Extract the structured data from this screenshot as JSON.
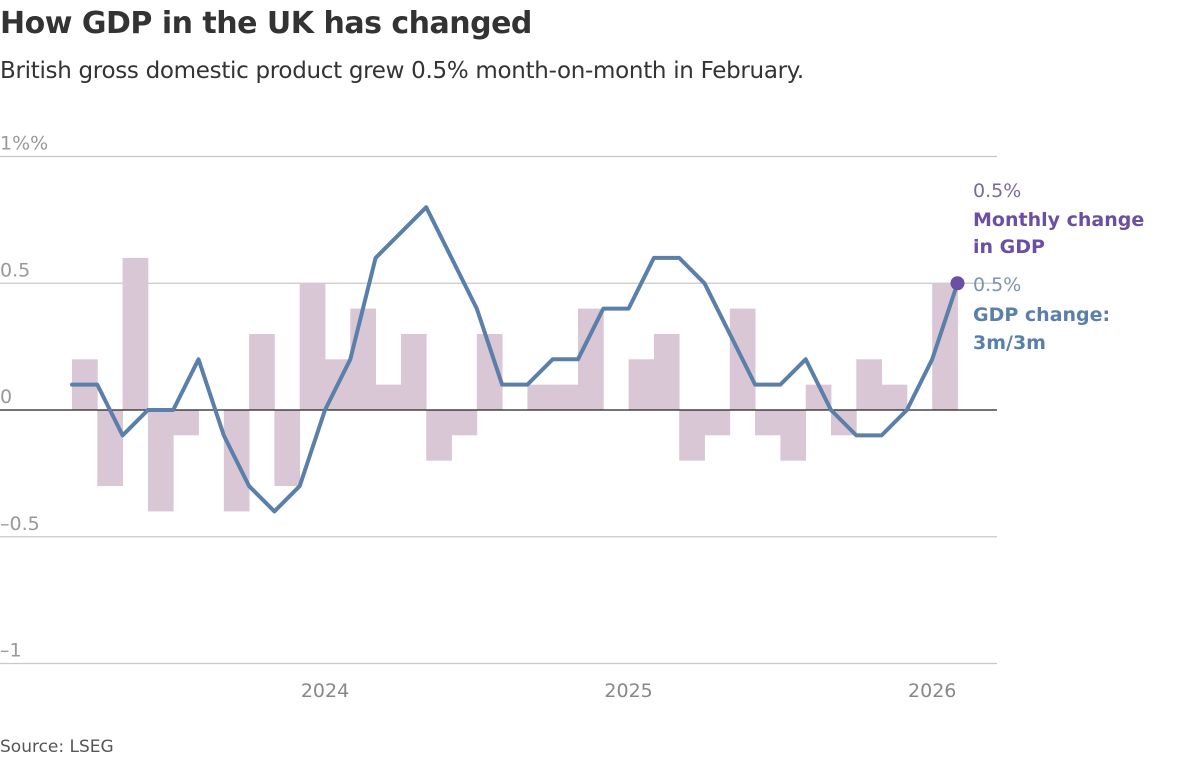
{
  "title": "How GDP in the UK has changed",
  "subtitle": "British gross domestic product grew 0.5% month-on-month in February.",
  "source": "Source: LSEG",
  "colors": {
    "bars": "#d9c7d6",
    "line": "#5a7fa9",
    "dot": "#6a4fa3",
    "monthly_label": "#6a4fa3",
    "line_label": "#5a7fa9"
  },
  "chart_data": {
    "type": "bar+line",
    "ylim": [
      -1,
      1
    ],
    "yticks": [
      1,
      0.5,
      0,
      -0.5,
      -1
    ],
    "ytick_labels": [
      "1%%",
      "0.5",
      "0",
      "–0.5",
      "–1"
    ],
    "xtick_labels": [
      {
        "label": "2024",
        "date": "2024-01"
      },
      {
        "label": "2025",
        "date": "2025-01"
      },
      {
        "label": "2026",
        "date": "2026-01"
      }
    ],
    "grid": true,
    "series": [
      {
        "name": "Monthly change in GDP",
        "kind": "bar",
        "x": [
          "2023-04",
          "2023-05",
          "2023-06",
          "2023-07",
          "2023-08",
          "2023-09",
          "2023-10",
          "2023-11",
          "2023-12",
          "2024-01",
          "2024-02",
          "2024-03",
          "2024-04",
          "2024-05",
          "2024-06",
          "2024-07",
          "2024-08",
          "2024-09",
          "2024-10",
          "2024-11",
          "2024-12",
          "2025-01",
          "2025-02",
          "2025-03",
          "2025-04",
          "2025-05",
          "2025-06",
          "2025-07",
          "2025-08",
          "2025-09",
          "2025-10",
          "2025-11",
          "2025-12",
          "2026-01",
          "2026-02"
        ],
        "values": [
          0.2,
          -0.3,
          0.6,
          -0.4,
          -0.1,
          0.0,
          -0.4,
          0.3,
          -0.3,
          0.5,
          0.2,
          0.4,
          0.1,
          0.3,
          -0.2,
          -0.1,
          0.3,
          0.0,
          0.1,
          0.1,
          0.4,
          0.0,
          0.2,
          0.3,
          -0.2,
          -0.1,
          0.4,
          -0.1,
          -0.2,
          0.1,
          -0.1,
          0.2,
          0.1,
          0.0,
          0.5
        ]
      },
      {
        "name": "GDP change: 3m/3m",
        "kind": "line",
        "x": [
          "2023-03",
          "2023-04",
          "2023-05",
          "2023-06",
          "2023-07",
          "2023-08",
          "2023-09",
          "2023-10",
          "2023-11",
          "2023-12",
          "2024-01",
          "2024-02",
          "2024-03",
          "2024-04",
          "2024-05",
          "2024-06",
          "2024-07",
          "2024-08",
          "2024-09",
          "2024-10",
          "2024-11",
          "2024-12",
          "2025-01",
          "2025-02",
          "2025-03",
          "2025-04",
          "2025-05",
          "2025-06",
          "2025-07",
          "2025-08",
          "2025-09",
          "2025-10",
          "2025-11",
          "2025-12",
          "2026-01",
          "2026-02"
        ],
        "values": [
          0.1,
          0.1,
          -0.1,
          0.0,
          0.0,
          0.2,
          -0.1,
          -0.3,
          -0.4,
          -0.3,
          0.0,
          0.2,
          0.6,
          0.7,
          0.8,
          0.6,
          0.4,
          0.1,
          0.1,
          0.2,
          0.2,
          0.4,
          0.4,
          0.6,
          0.6,
          0.5,
          0.3,
          0.1,
          0.1,
          0.2,
          0.0,
          -0.1,
          -0.1,
          0.0,
          0.2,
          0.5
        ]
      }
    ],
    "annotations": {
      "monthly": {
        "value": "0.5%",
        "label_line1": "Monthly change",
        "label_line2": "in GDP"
      },
      "line": {
        "value": "0.5%",
        "label_line1": "GDP change:",
        "label_line2": "3m/3m"
      }
    }
  }
}
